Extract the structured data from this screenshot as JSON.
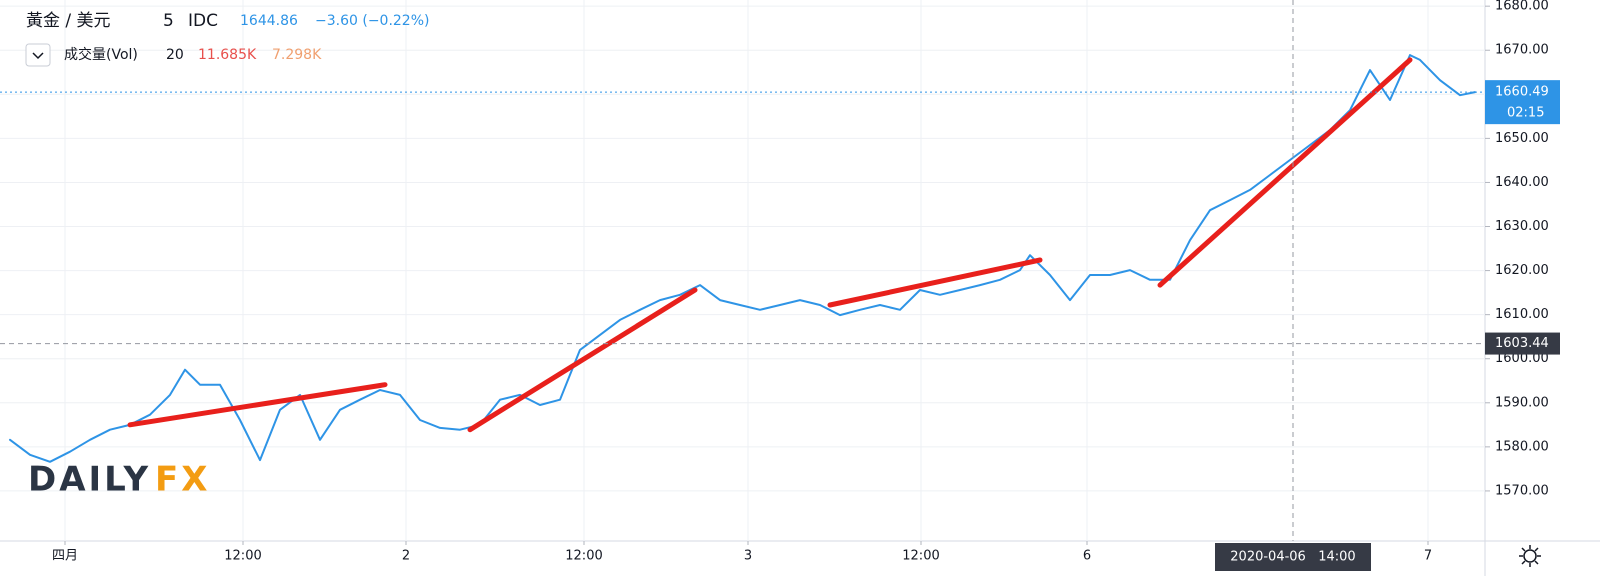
{
  "chart_data": {
    "type": "line",
    "title": "黃金 / 美元",
    "interval": "5",
    "source": "IDC",
    "price": 1644.86,
    "change": "−3.60 (−0.22%)",
    "volume_label": "成交量(Vol)",
    "volume_length": "20",
    "volume_value": "11.685K",
    "volume_average": "7.298K",
    "logo": [
      "DAILY",
      "FX"
    ],
    "series": [
      {
        "color": "#2e94e6",
        "x": [
          0,
          2,
          4,
          6,
          8,
          10,
          12,
          14,
          16,
          17.5,
          19,
          21,
          23,
          25,
          27,
          29,
          31,
          33,
          35,
          37,
          39,
          41,
          43,
          45,
          47,
          49,
          51,
          53,
          55,
          57,
          59,
          61,
          63,
          65,
          67,
          69,
          71,
          73,
          75,
          77,
          79,
          81,
          83,
          85,
          87,
          89,
          91,
          93,
          95,
          97,
          99,
          101,
          102,
          104,
          106,
          108,
          110,
          112,
          114,
          116,
          118,
          120,
          122,
          124,
          126,
          128,
          130,
          132,
          134,
          136,
          138,
          140,
          141,
          143,
          145,
          146.5
        ],
        "values": [
          1581.6,
          1578.2,
          1576.6,
          1578.9,
          1581.6,
          1583.9,
          1585.0,
          1587.3,
          1591.8,
          1597.5,
          1594.1,
          1594.1,
          1586.1,
          1577.0,
          1588.4,
          1591.8,
          1581.6,
          1588.4,
          1590.7,
          1592.9,
          1591.8,
          1586.1,
          1584.3,
          1583.9,
          1585.0,
          1590.7,
          1591.8,
          1589.5,
          1590.7,
          1602.0,
          1605.4,
          1608.8,
          1611.1,
          1613.3,
          1614.5,
          1616.7,
          1613.3,
          1612.2,
          1611.1,
          1612.2,
          1613.3,
          1612.2,
          1609.9,
          1611.1,
          1612.2,
          1611.1,
          1615.6,
          1614.5,
          1615.6,
          1616.7,
          1617.9,
          1620.1,
          1623.5,
          1619.0,
          1613.3,
          1619.0,
          1619.0,
          1620.1,
          1617.9,
          1617.9,
          1626.9,
          1633.7,
          1636.0,
          1638.3,
          1641.7,
          1645.1,
          1648.5,
          1651.9,
          1656.4,
          1665.5,
          1658.7,
          1668.9,
          1667.8,
          1663.2,
          1659.8,
          1660.5
        ]
      },
      {
        "color": "#e8201c",
        "x": [
          12,
          37.5,
          38,
          46,
          68.5,
          69,
          82,
          103,
          104,
          115,
          140
        ],
        "values": [
          1585.0,
          1594.1,
          null,
          1583.9,
          1615.6,
          null,
          1612.2,
          1622.4,
          null,
          1616.7,
          1667.8
        ]
      }
    ],
    "xlim": [
      0,
      147.5
    ],
    "xticks": [
      {
        "value": 5.5,
        "label": "四月"
      },
      {
        "value": 23.3,
        "label": "12:00"
      },
      {
        "value": 39.6,
        "label": "2"
      },
      {
        "value": 57.4,
        "label": "12:00"
      },
      {
        "value": 73.8,
        "label": "3"
      },
      {
        "value": 91.1,
        "label": "12:00"
      },
      {
        "value": 107.7,
        "label": "6"
      },
      {
        "value": 141.8,
        "label": "7"
      }
    ],
    "ylim": [
      1560,
      1681.4
    ],
    "yticks": [
      {
        "value": 1570,
        "label": "1570.00"
      },
      {
        "value": 1580,
        "label": "1580.00"
      },
      {
        "value": 1590,
        "label": "1590.00"
      },
      {
        "value": 1600,
        "label": "1600.00"
      },
      {
        "value": 1610,
        "label": "1610.00"
      },
      {
        "value": 1620,
        "label": "1620.00"
      },
      {
        "value": 1630,
        "label": "1630.00"
      },
      {
        "value": 1640,
        "label": "1640.00"
      },
      {
        "value": 1650,
        "label": "1650.00"
      },
      {
        "value": 1660,
        "label": "1660.00"
      },
      {
        "value": 1670,
        "label": "1670.00"
      },
      {
        "value": 1680,
        "label": "1680.00"
      }
    ],
    "last_price": {
      "value": 1660.49,
      "label": "1660.49"
    },
    "countdown": "02:15",
    "crosshair_price": {
      "value": 1603.44,
      "label": "1603.44"
    },
    "crosshair_x": {
      "value": 128.3,
      "label": "2020-04-06   14:00"
    },
    "grid": true
  }
}
